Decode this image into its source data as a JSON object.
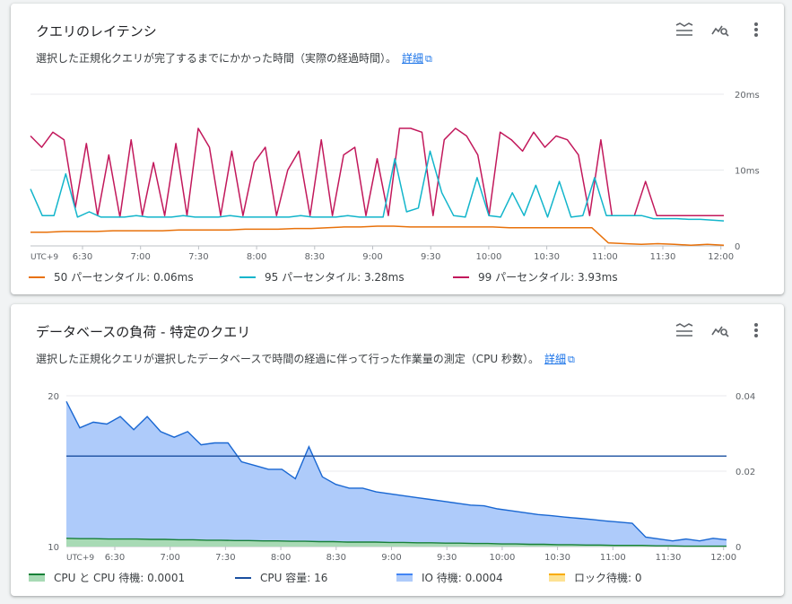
{
  "latency_card": {
    "title": "クエリのレイテンシ",
    "description": "選択した正規化クエリが完了するまでにかかった時間（実際の経過時間）。",
    "link": "詳細",
    "icons": [
      "legend-toggle-icon",
      "query-insights-icon",
      "more-vert-icon"
    ]
  },
  "load_card": {
    "title": "データベースの負荷 - 特定のクエリ",
    "description": "選択した正規化クエリが選択したデータベースで時間の経過に伴って行った作業量の測定（CPU 秒数）。",
    "link": "詳細",
    "icons": [
      "legend-toggle-icon",
      "query-insights-icon",
      "more-vert-icon"
    ]
  },
  "chart_data": [
    {
      "type": "line",
      "tz_label": "UTC+9",
      "x_ticks": [
        "6:30",
        "7:00",
        "7:30",
        "8:00",
        "8:30",
        "9:00",
        "9:30",
        "10:00",
        "10:30",
        "11:00",
        "11:30",
        "12:00"
      ],
      "y_ticks": [
        "20ms",
        "10ms",
        "0"
      ],
      "ylim": [
        0,
        20
      ],
      "y_unit": "ms",
      "series": [
        {
          "name": "50 パーセンタイル: 0.06ms",
          "color": "#e8710a",
          "values": [
            1.8,
            1.8,
            1.9,
            1.9,
            1.9,
            2.0,
            2.0,
            2.0,
            2.0,
            2.1,
            2.1,
            2.1,
            2.1,
            2.2,
            2.2,
            2.2,
            2.3,
            2.3,
            2.4,
            2.5,
            2.5,
            2.6,
            2.6,
            2.5,
            2.5,
            2.5,
            2.5,
            2.5,
            2.5,
            2.4,
            2.4,
            2.4,
            2.4,
            2.4,
            2.4,
            0.4,
            0.3,
            0.2,
            0.3,
            0.2,
            0.1,
            0.2,
            0.1
          ]
        },
        {
          "name": "95 パーセンタイル: 3.28ms",
          "color": "#12b5cb",
          "values": [
            7.5,
            4.0,
            4.0,
            9.5,
            3.8,
            4.5,
            3.8,
            3.8,
            3.8,
            4.0,
            3.8,
            3.8,
            3.8,
            4.0,
            3.8,
            3.8,
            3.8,
            4.0,
            3.8,
            3.8,
            3.8,
            3.8,
            3.8,
            4.0,
            3.8,
            3.8,
            3.8,
            4.0,
            3.8,
            3.8,
            3.8,
            11.5,
            4.5,
            5.0,
            12.5,
            7.0,
            4.0,
            3.8,
            9.0,
            4.0,
            3.8,
            7.0,
            4.0,
            8.0,
            3.8,
            8.5,
            3.8,
            4.0,
            9.0,
            4.0,
            4.0,
            4.0,
            4.0,
            3.6,
            3.6,
            3.6,
            3.5,
            3.5,
            3.4,
            3.3
          ]
        },
        {
          "name": "99 パーセンタイル: 3.93ms",
          "color": "#c2185b",
          "values": [
            14.5,
            13.0,
            15.0,
            14.0,
            5.0,
            13.5,
            4.0,
            12.0,
            3.8,
            14.0,
            4.0,
            11.0,
            4.0,
            13.5,
            4.0,
            15.5,
            13.0,
            4.0,
            12.5,
            4.0,
            11.0,
            13.0,
            4.0,
            10.0,
            12.5,
            4.0,
            14.0,
            4.0,
            12.0,
            13.0,
            4.0,
            11.5,
            4.0,
            15.5,
            15.5,
            15.0,
            4.0,
            14.0,
            15.5,
            14.5,
            12.0,
            4.0,
            15.0,
            14.0,
            12.5,
            15.0,
            13.0,
            14.5,
            14.0,
            12.0,
            4.0,
            14.0,
            4.0,
            4.0,
            4.0,
            8.5,
            4.0,
            4.0,
            4.0,
            4.0,
            4.0,
            4.0,
            4.0
          ]
        }
      ]
    },
    {
      "type": "area",
      "tz_label": "UTC+9",
      "x_ticks": [
        "6:30",
        "7:00",
        "7:30",
        "8:00",
        "8:30",
        "9:00",
        "9:30",
        "10:00",
        "10:30",
        "11:00",
        "11:30",
        "12:00"
      ],
      "left_axis": {
        "ticks": [
          "20",
          "10"
        ],
        "ylim": [
          10,
          20
        ]
      },
      "right_axis": {
        "ticks": [
          "0.04",
          "0.02",
          "0"
        ],
        "ylim": [
          0,
          0.04
        ]
      },
      "series": [
        {
          "name": "CPU と CPU 待機: 0.0001",
          "color": "#188038",
          "values": [
            0.0022,
            0.0021,
            0.0021,
            0.002,
            0.002,
            0.002,
            0.0019,
            0.0019,
            0.0018,
            0.0018,
            0.0017,
            0.0017,
            0.0016,
            0.0016,
            0.0015,
            0.0015,
            0.0014,
            0.0014,
            0.0013,
            0.0013,
            0.0012,
            0.0012,
            0.0012,
            0.0011,
            0.0011,
            0.001,
            0.001,
            0.0009,
            0.0009,
            0.0008,
            0.0008,
            0.0007,
            0.0007,
            0.0006,
            0.0006,
            0.0005,
            0.0005,
            0.0004,
            0.0004,
            0.0003,
            0.0003,
            0.0003,
            0.0002,
            0.0002,
            0.0001,
            0.0001,
            0.0001,
            0.0001
          ]
        },
        {
          "name": "CPU 容量: 16",
          "color": "#1a4fa0",
          "values": [
            16,
            16
          ]
        },
        {
          "name": "IO 待機: 0.0004",
          "color": "#4285f4",
          "values": [
            0.0385,
            0.0315,
            0.033,
            0.0325,
            0.0345,
            0.031,
            0.0345,
            0.0305,
            0.029,
            0.0305,
            0.027,
            0.0275,
            0.0275,
            0.0225,
            0.0215,
            0.0205,
            0.0205,
            0.018,
            0.0265,
            0.0185,
            0.0165,
            0.0155,
            0.0155,
            0.0145,
            0.014,
            0.0135,
            0.013,
            0.0125,
            0.012,
            0.0115,
            0.011,
            0.0108,
            0.01,
            0.0095,
            0.009,
            0.0085,
            0.0082,
            0.0078,
            0.0075,
            0.0072,
            0.0068,
            0.0065,
            0.0062,
            0.0025,
            0.002,
            0.0015,
            0.002,
            0.0015,
            0.0022,
            0.0018
          ]
        },
        {
          "name": "ロック待機: 0",
          "color": "#f9ab00",
          "values": [
            0,
            0
          ]
        }
      ]
    }
  ]
}
